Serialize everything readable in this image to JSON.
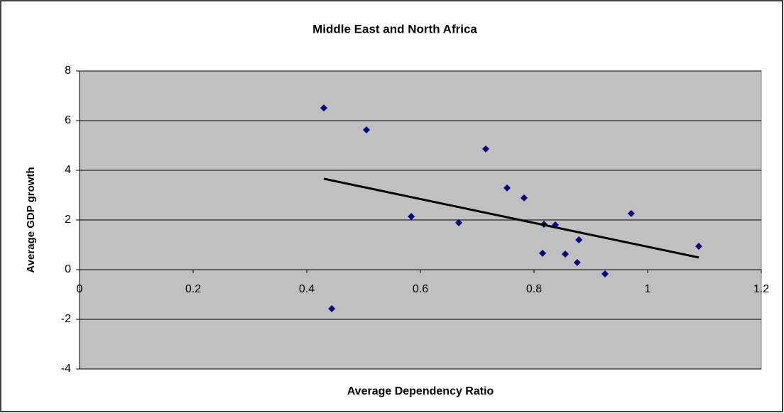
{
  "chart_data": {
    "type": "scatter",
    "title": "Middle East and North Africa",
    "x_label": "Average Dependency Ratio",
    "y_label": "Average GDP growth",
    "series": [
      {
        "color": "#000080",
        "x": [
          0.43,
          0.505,
          0.715,
          0.7525,
          0.7825,
          0.584,
          0.6675,
          0.8175,
          0.8375,
          0.971,
          0.879,
          0.815,
          0.855,
          0.876,
          0.925,
          1.09,
          0.444
        ],
        "values": [
          6.51,
          5.63,
          4.86,
          3.29,
          2.89,
          2.14,
          1.89,
          1.83,
          1.8,
          2.26,
          1.2,
          0.66,
          0.63,
          0.29,
          -0.17,
          0.94,
          -1.57
        ]
      }
    ],
    "trendline": {
      "color": "#000000",
      "x": [
        0.43,
        1.09
      ],
      "values": [
        3.66,
        0.49
      ]
    },
    "xlim": [
      0,
      1.2
    ],
    "xticks": [
      0,
      0.2,
      0.4,
      0.6,
      0.8,
      1,
      1.2
    ],
    "ylim": [
      -4,
      8
    ],
    "yticks": [
      -4,
      -2,
      0,
      2,
      4,
      6,
      8
    ],
    "grid": true,
    "plot_background": "#c0c0c0"
  }
}
